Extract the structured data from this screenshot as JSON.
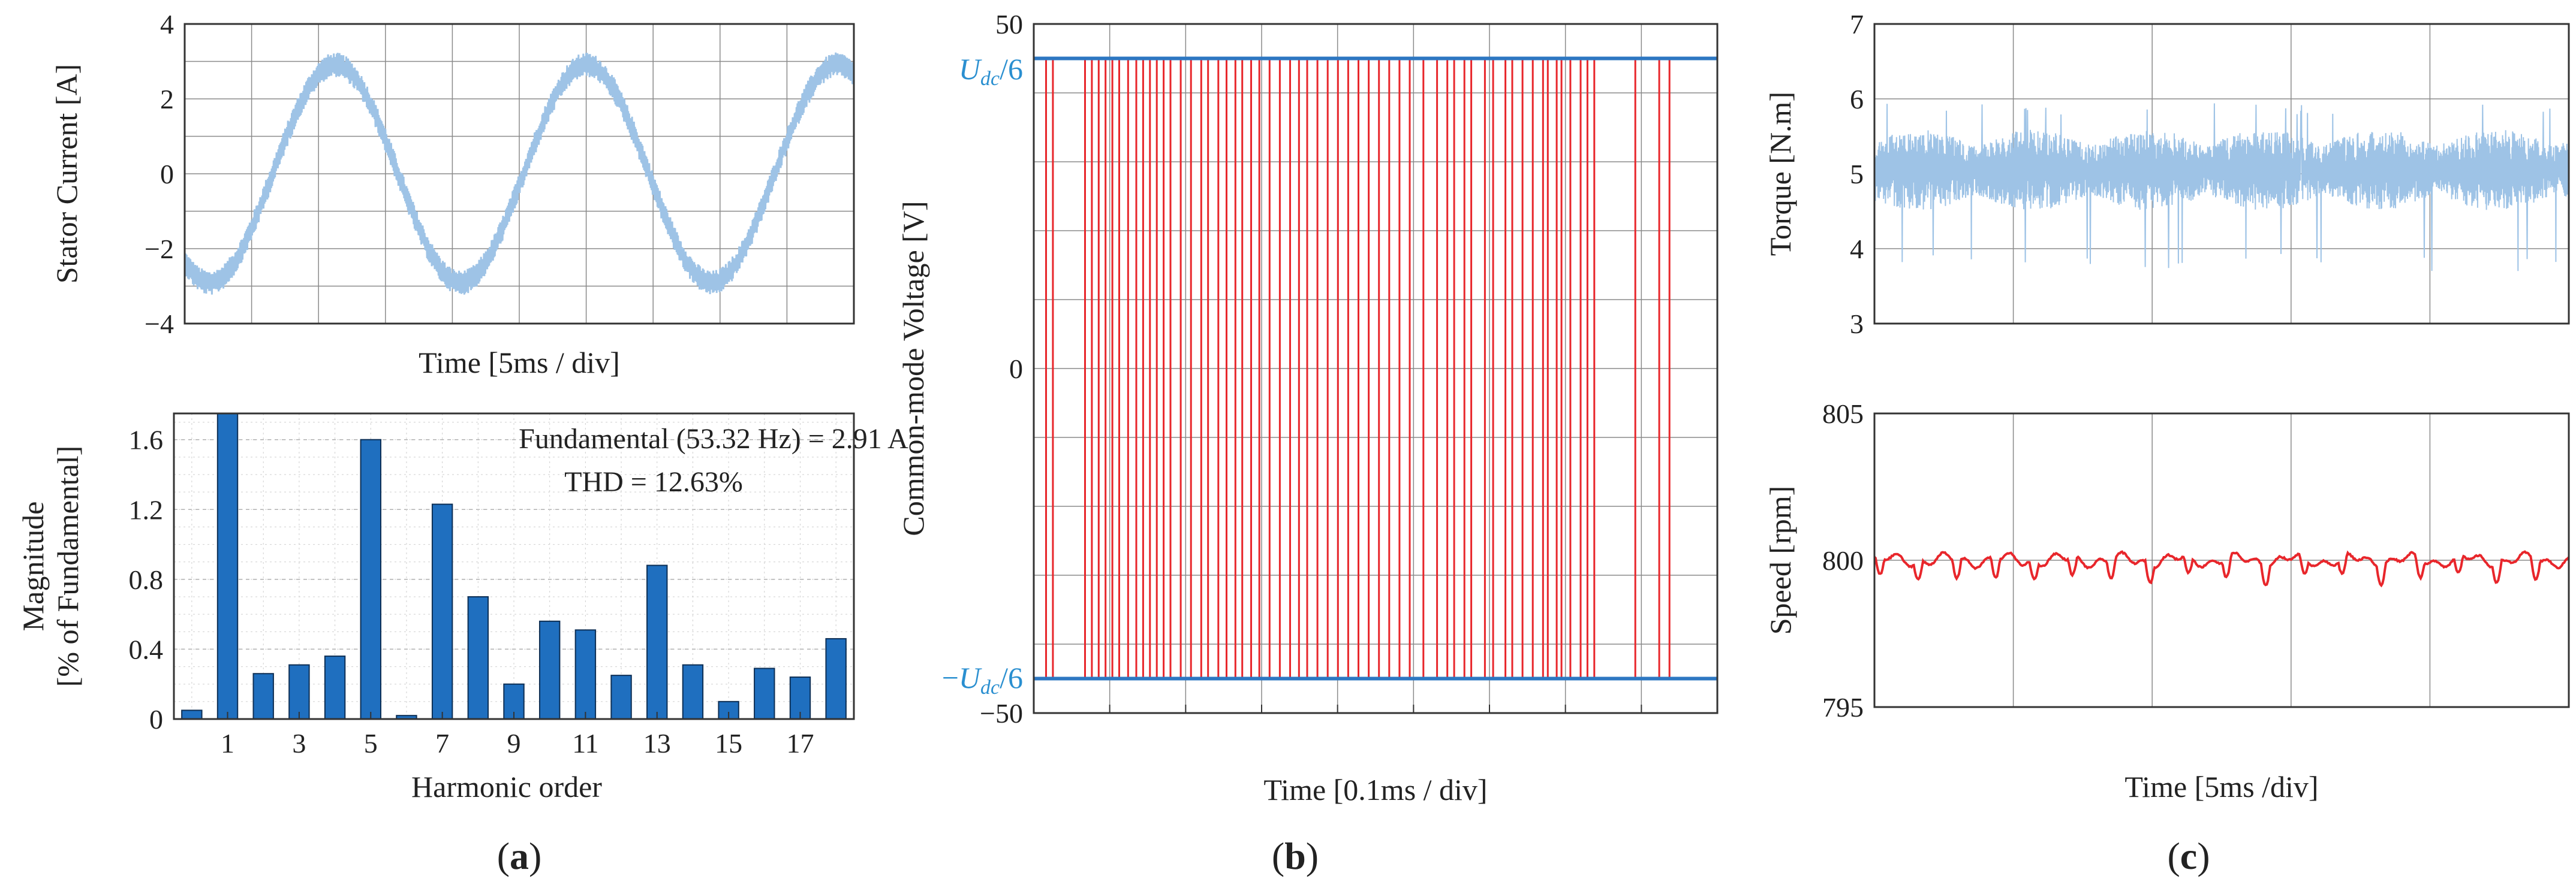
{
  "panel_labels": {
    "a": {
      "open": "(",
      "letter": "a",
      "close": ")"
    },
    "b": {
      "open": "(",
      "letter": "b",
      "close": ")"
    },
    "c": {
      "open": "(",
      "letter": "c",
      "close": ")"
    }
  },
  "colors": {
    "current": "#9ec3e6",
    "bars": "#1f6fbf",
    "cmv_pulse": "#e8262b",
    "cmv_level": "#2d77c2",
    "cmv_label": "#2a8fd0",
    "torque": "#9ec3e6",
    "speed": "#e8262b",
    "grid": "#8a8a8a"
  },
  "chart_data": [
    {
      "id": "stator-current",
      "type": "line",
      "xlabel": "Time [5ms / div]",
      "ylabel": "Stator Current [A]",
      "ylim": [
        -4,
        4
      ],
      "yticks": [
        -4,
        -2,
        0,
        2,
        4
      ],
      "x_divisions": 10,
      "grid": true,
      "series": [
        {
          "amplitude": 2.91,
          "frequency_hz": 53.32,
          "ripple": 0.3,
          "time_window_ms": 50
        }
      ]
    },
    {
      "id": "harmonic-spectrum",
      "type": "bar",
      "xlabel": "Harmonic order",
      "ylabel": "Magnitude",
      "ylabel_2": "[% of Fundamental]",
      "ylim": [
        0,
        1.75
      ],
      "yticks": [
        0,
        0.4,
        0.8,
        1.2,
        1.6
      ],
      "xticks": [
        1,
        3,
        5,
        7,
        9,
        11,
        13,
        15,
        17
      ],
      "grid": true,
      "categories": [
        0,
        1,
        2,
        3,
        4,
        5,
        6,
        7,
        8,
        9,
        10,
        11,
        12,
        13,
        14,
        15,
        16,
        17,
        18
      ],
      "values": [
        0.05,
        1.75,
        0.26,
        0.31,
        0.36,
        1.6,
        0.02,
        1.23,
        0.7,
        0.2,
        0.56,
        0.51,
        0.25,
        0.88,
        0.31,
        0.1,
        0.29,
        0.24,
        0.46
      ],
      "annotations": [
        "Fundamental (53.32 Hz) = 2.91 A",
        "THD = 12.63%"
      ]
    },
    {
      "id": "common-mode-voltage",
      "type": "line",
      "xlabel": "Time [0.1ms / div]",
      "ylabel": "Common-mode Voltage [V]",
      "ylim": [
        -50,
        50
      ],
      "yticks": [
        -50,
        0,
        50
      ],
      "x_divisions": 9,
      "grid": true,
      "levels": [
        {
          "value": 45,
          "label_sign": "",
          "label_main": "U",
          "label_sub": "dc",
          "label_div": "/6"
        },
        {
          "value": -45,
          "label_sign": "−",
          "label_main": "U",
          "label_sub": "dc",
          "label_div": "/6"
        }
      ],
      "pulse_positions": [
        0.018,
        0.028,
        0.075,
        0.085,
        0.095,
        0.105,
        0.115,
        0.125,
        0.138,
        0.15,
        0.16,
        0.17,
        0.18,
        0.19,
        0.2,
        0.215,
        0.23,
        0.245,
        0.255,
        0.27,
        0.282,
        0.295,
        0.305,
        0.318,
        0.33,
        0.345,
        0.36,
        0.375,
        0.388,
        0.4,
        0.415,
        0.43,
        0.445,
        0.46,
        0.475,
        0.49,
        0.505,
        0.52,
        0.535,
        0.55,
        0.57,
        0.59,
        0.605,
        0.615,
        0.63,
        0.64,
        0.66,
        0.672,
        0.69,
        0.7,
        0.715,
        0.73,
        0.745,
        0.752,
        0.765,
        0.772,
        0.785,
        0.8,
        0.81,
        0.82,
        0.88,
        0.915,
        0.93
      ]
    },
    {
      "id": "torque",
      "type": "line",
      "ylabel": "Torque [N.m]",
      "ylim": [
        3,
        7
      ],
      "yticks": [
        3,
        4,
        5,
        6,
        7
      ],
      "x_divisions": 5,
      "grid": true,
      "series": [
        {
          "mean": 5.05,
          "ripple": 0.45
        }
      ]
    },
    {
      "id": "speed",
      "type": "line",
      "xlabel": "Time [5ms /div]",
      "ylabel": "Speed [rpm]",
      "ylim": [
        795,
        805
      ],
      "yticks": [
        795,
        800,
        805
      ],
      "x_divisions": 5,
      "grid": true,
      "series": [
        {
          "mean": 800
        }
      ]
    }
  ]
}
